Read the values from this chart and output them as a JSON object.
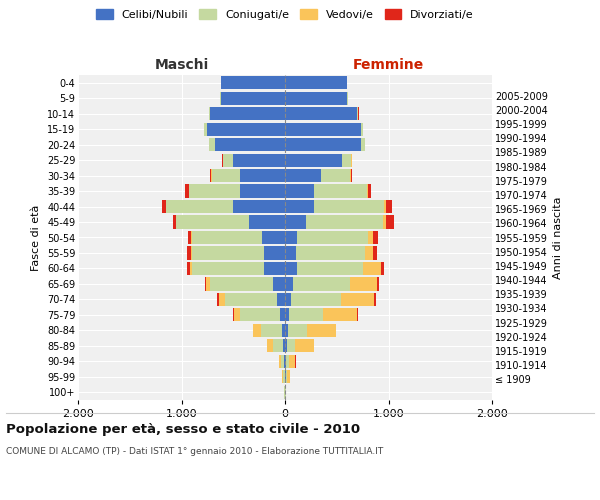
{
  "age_groups": [
    "100+",
    "95-99",
    "90-94",
    "85-89",
    "80-84",
    "75-79",
    "70-74",
    "65-69",
    "60-64",
    "55-59",
    "50-54",
    "45-49",
    "40-44",
    "35-39",
    "30-34",
    "25-29",
    "20-24",
    "15-19",
    "10-14",
    "5-9",
    "0-4"
  ],
  "birth_years": [
    "≤ 1909",
    "1910-1914",
    "1915-1919",
    "1920-1924",
    "1925-1929",
    "1930-1934",
    "1935-1939",
    "1940-1944",
    "1945-1949",
    "1950-1954",
    "1955-1959",
    "1960-1964",
    "1965-1969",
    "1970-1974",
    "1975-1979",
    "1980-1984",
    "1985-1989",
    "1990-1994",
    "1995-1999",
    "2000-2004",
    "2005-2009"
  ],
  "maschi": {
    "celibi": [
      2,
      4,
      10,
      20,
      30,
      50,
      80,
      120,
      200,
      200,
      220,
      350,
      500,
      430,
      430,
      500,
      680,
      750,
      720,
      620,
      620
    ],
    "coniugati": [
      5,
      15,
      30,
      100,
      200,
      380,
      500,
      600,
      700,
      700,
      680,
      700,
      650,
      500,
      280,
      100,
      50,
      30,
      10,
      5,
      3
    ],
    "vedovi": [
      2,
      10,
      20,
      50,
      80,
      60,
      60,
      40,
      20,
      10,
      5,
      5,
      3,
      2,
      1,
      1,
      1,
      1,
      0,
      0,
      0
    ],
    "divorziati": [
      0,
      0,
      1,
      2,
      3,
      10,
      15,
      15,
      30,
      35,
      30,
      30,
      40,
      30,
      10,
      5,
      3,
      2,
      1,
      0,
      0
    ]
  },
  "femmine": {
    "nubili": [
      3,
      5,
      10,
      20,
      30,
      40,
      60,
      80,
      120,
      110,
      120,
      200,
      280,
      280,
      350,
      550,
      730,
      730,
      700,
      600,
      600
    ],
    "coniugate": [
      4,
      10,
      30,
      80,
      180,
      330,
      480,
      550,
      630,
      660,
      680,
      750,
      680,
      510,
      280,
      90,
      40,
      25,
      10,
      5,
      2
    ],
    "vedove": [
      5,
      30,
      60,
      180,
      280,
      330,
      320,
      260,
      180,
      80,
      50,
      30,
      15,
      10,
      5,
      3,
      2,
      1,
      0,
      0,
      0
    ],
    "divorziate": [
      0,
      0,
      2,
      3,
      5,
      10,
      15,
      20,
      30,
      35,
      50,
      70,
      55,
      30,
      15,
      5,
      3,
      2,
      1,
      0,
      0
    ]
  },
  "colors": {
    "celibi_nubili": "#4472C4",
    "coniugati": "#C5D9A0",
    "vedovi": "#FAC45A",
    "divorziati": "#E0261A"
  },
  "xlim": 2000,
  "title": "Popolazione per età, sesso e stato civile - 2010",
  "subtitle": "COMUNE DI ALCAMO (TP) - Dati ISTAT 1° gennaio 2010 - Elaborazione TUTTITALIA.IT",
  "xlabel_left": "Maschi",
  "xlabel_right": "Femmine",
  "ylabel_left": "Fasce di età",
  "ylabel_right": "Anni di nascita",
  "legend_labels": [
    "Celibi/Nubili",
    "Coniugati/e",
    "Vedovi/e",
    "Divorziati/e"
  ],
  "background_color": "#ffffff",
  "plot_bg_color": "#f0f0f0",
  "grid_color": "#ffffff"
}
